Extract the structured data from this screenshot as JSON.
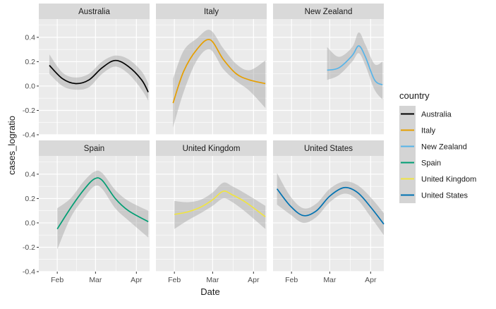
{
  "chart_data": {
    "type": "line",
    "xlabel": "Date",
    "ylabel": "cases_logratio",
    "x_ticks": [
      "Feb",
      "Mar",
      "Apr"
    ],
    "x_tick_dates": [
      "2020-02-01",
      "2020-03-01",
      "2020-04-01"
    ],
    "xlim": [
      "2020-01-18",
      "2020-04-11"
    ],
    "y_ticks": [
      -0.4,
      -0.2,
      0.0,
      0.2,
      0.4
    ],
    "y_tick_labels": [
      "-0.4",
      "-0.2",
      "0.0",
      "0.2",
      "0.4"
    ],
    "ylim": [
      -0.4,
      0.55
    ],
    "grid": true,
    "legend": {
      "title": "country",
      "position": "right",
      "entries": [
        "Australia",
        "Italy",
        "New Zealand",
        "Spain",
        "United Kingdom",
        "United States"
      ]
    },
    "facet_layout": {
      "rows": 2,
      "cols": 3
    },
    "series": [
      {
        "name": "Australia",
        "color": "#000000",
        "x": [
          "2020-01-26",
          "2020-02-05",
          "2020-02-15",
          "2020-02-25",
          "2020-03-06",
          "2020-03-16",
          "2020-03-26",
          "2020-04-05",
          "2020-04-10"
        ],
        "y": [
          0.17,
          0.06,
          0.02,
          0.05,
          0.15,
          0.21,
          0.16,
          0.05,
          -0.05
        ],
        "lower": [
          0.1,
          0.0,
          -0.03,
          -0.01,
          0.1,
          0.16,
          0.1,
          -0.03,
          -0.12
        ],
        "upper": [
          0.26,
          0.11,
          0.07,
          0.1,
          0.2,
          0.25,
          0.22,
          0.12,
          0.02
        ]
      },
      {
        "name": "Italy",
        "color": "#E69F00",
        "x": [
          "2020-01-31",
          "2020-02-08",
          "2020-02-18",
          "2020-02-28",
          "2020-03-09",
          "2020-03-19",
          "2020-03-29",
          "2020-04-10"
        ],
        "y": [
          -0.14,
          0.12,
          0.3,
          0.38,
          0.22,
          0.1,
          0.05,
          0.02
        ],
        "lower": [
          -0.34,
          -0.05,
          0.21,
          0.3,
          0.14,
          0.04,
          -0.04,
          -0.18
        ],
        "upper": [
          0.06,
          0.29,
          0.39,
          0.46,
          0.31,
          0.18,
          0.13,
          0.21
        ]
      },
      {
        "name": "New Zealand",
        "color": "#56B4E9",
        "x": [
          "2020-02-28",
          "2020-03-08",
          "2020-03-18",
          "2020-03-23",
          "2020-03-28",
          "2020-04-04",
          "2020-04-10"
        ],
        "y": [
          0.13,
          0.15,
          0.25,
          0.33,
          0.24,
          0.05,
          0.01
        ],
        "lower": [
          0.05,
          0.09,
          0.2,
          0.27,
          0.17,
          -0.03,
          -0.11
        ],
        "upper": [
          0.32,
          0.24,
          0.32,
          0.44,
          0.34,
          0.18,
          0.2
        ]
      },
      {
        "name": "Spain",
        "color": "#009E73",
        "x": [
          "2020-02-01",
          "2020-02-11",
          "2020-02-21",
          "2020-02-29",
          "2020-03-06",
          "2020-03-16",
          "2020-03-26",
          "2020-04-10"
        ],
        "y": [
          -0.05,
          0.12,
          0.27,
          0.36,
          0.35,
          0.2,
          0.1,
          0.01
        ],
        "lower": [
          -0.22,
          0.04,
          0.2,
          0.3,
          0.28,
          0.12,
          0.02,
          -0.12
        ],
        "upper": [
          0.12,
          0.2,
          0.34,
          0.42,
          0.41,
          0.27,
          0.18,
          0.1
        ]
      },
      {
        "name": "United Kingdom",
        "color": "#F0E442",
        "x": [
          "2020-02-01",
          "2020-02-11",
          "2020-02-21",
          "2020-03-01",
          "2020-03-09",
          "2020-03-16",
          "2020-03-26",
          "2020-04-10"
        ],
        "y": [
          0.07,
          0.09,
          0.13,
          0.19,
          0.26,
          0.23,
          0.17,
          0.05
        ],
        "lower": [
          -0.05,
          0.02,
          0.08,
          0.14,
          0.2,
          0.17,
          0.09,
          -0.05
        ],
        "upper": [
          0.18,
          0.17,
          0.19,
          0.25,
          0.33,
          0.3,
          0.24,
          0.14
        ]
      },
      {
        "name": "United States",
        "color": "#0072B2",
        "x": [
          "2020-01-21",
          "2020-01-31",
          "2020-02-10",
          "2020-02-20",
          "2020-03-01",
          "2020-03-12",
          "2020-03-22",
          "2020-04-01",
          "2020-04-11"
        ],
        "y": [
          0.28,
          0.14,
          0.06,
          0.1,
          0.22,
          0.29,
          0.25,
          0.13,
          -0.01
        ],
        "lower": [
          0.15,
          0.07,
          0.0,
          0.05,
          0.17,
          0.24,
          0.19,
          0.05,
          -0.1
        ],
        "upper": [
          0.41,
          0.22,
          0.12,
          0.16,
          0.28,
          0.34,
          0.31,
          0.21,
          0.08
        ]
      }
    ]
  }
}
